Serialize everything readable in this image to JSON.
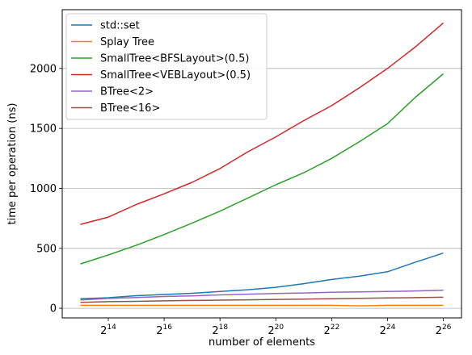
{
  "chart_data": {
    "type": "line",
    "title": "",
    "xlabel": "number of elements",
    "ylabel": "time per operation (ns)",
    "x_scale": "log2",
    "x": [
      13,
      14,
      15,
      16,
      17,
      18,
      19,
      20,
      21,
      22,
      23,
      24,
      25,
      26
    ],
    "x_ticks": [
      {
        "exp": 14,
        "base": "2",
        "sup": "14"
      },
      {
        "exp": 16,
        "base": "2",
        "sup": "16"
      },
      {
        "exp": 18,
        "base": "2",
        "sup": "18"
      },
      {
        "exp": 20,
        "base": "2",
        "sup": "20"
      },
      {
        "exp": 22,
        "base": "2",
        "sup": "22"
      },
      {
        "exp": 24,
        "base": "2",
        "sup": "24"
      },
      {
        "exp": 26,
        "base": "2",
        "sup": "26"
      }
    ],
    "xlim": [
      12.35,
      26.65
    ],
    "ylim": [
      -80,
      2490
    ],
    "y_ticks": [
      {
        "value": 0,
        "label": "0"
      },
      {
        "value": 500,
        "label": "500"
      },
      {
        "value": 1000,
        "label": "1000"
      },
      {
        "value": 1500,
        "label": "1500"
      },
      {
        "value": 2000,
        "label": "2000"
      }
    ],
    "grid": "horizontal",
    "legend_position": "top-left",
    "series": [
      {
        "name": "std::set",
        "color": "#1f77b4",
        "values": [
          80,
          88,
          105,
          115,
          125,
          140,
          155,
          175,
          205,
          240,
          268,
          305,
          385,
          460
        ]
      },
      {
        "name": "Splay Tree",
        "color": "#ff7f0e",
        "values": [
          25,
          25,
          25,
          25,
          25,
          25,
          25,
          25,
          25,
          25,
          20,
          25,
          25,
          25
        ]
      },
      {
        "name": "SmallTree<BFSLayout>(0.5)",
        "color": "#2ca02c",
        "values": [
          370,
          445,
          525,
          615,
          710,
          810,
          920,
          1030,
          1130,
          1250,
          1390,
          1540,
          1760,
          1955
        ]
      },
      {
        "name": "SmallTree<VEBLayout>(0.5)",
        "color": "#d62728",
        "values": [
          700,
          760,
          865,
          955,
          1050,
          1165,
          1305,
          1430,
          1565,
          1690,
          1840,
          2000,
          2180,
          2380
        ]
      },
      {
        "name": "BTree<2>",
        "color": "#9467bd",
        "values": [
          70,
          82,
          90,
          98,
          104,
          112,
          118,
          124,
          128,
          133,
          137,
          140,
          145,
          150
        ]
      },
      {
        "name": "BTree<16>",
        "color": "#8c564b",
        "values": [
          50,
          55,
          58,
          62,
          65,
          68,
          71,
          74,
          77,
          80,
          83,
          86,
          89,
          92
        ]
      }
    ]
  }
}
